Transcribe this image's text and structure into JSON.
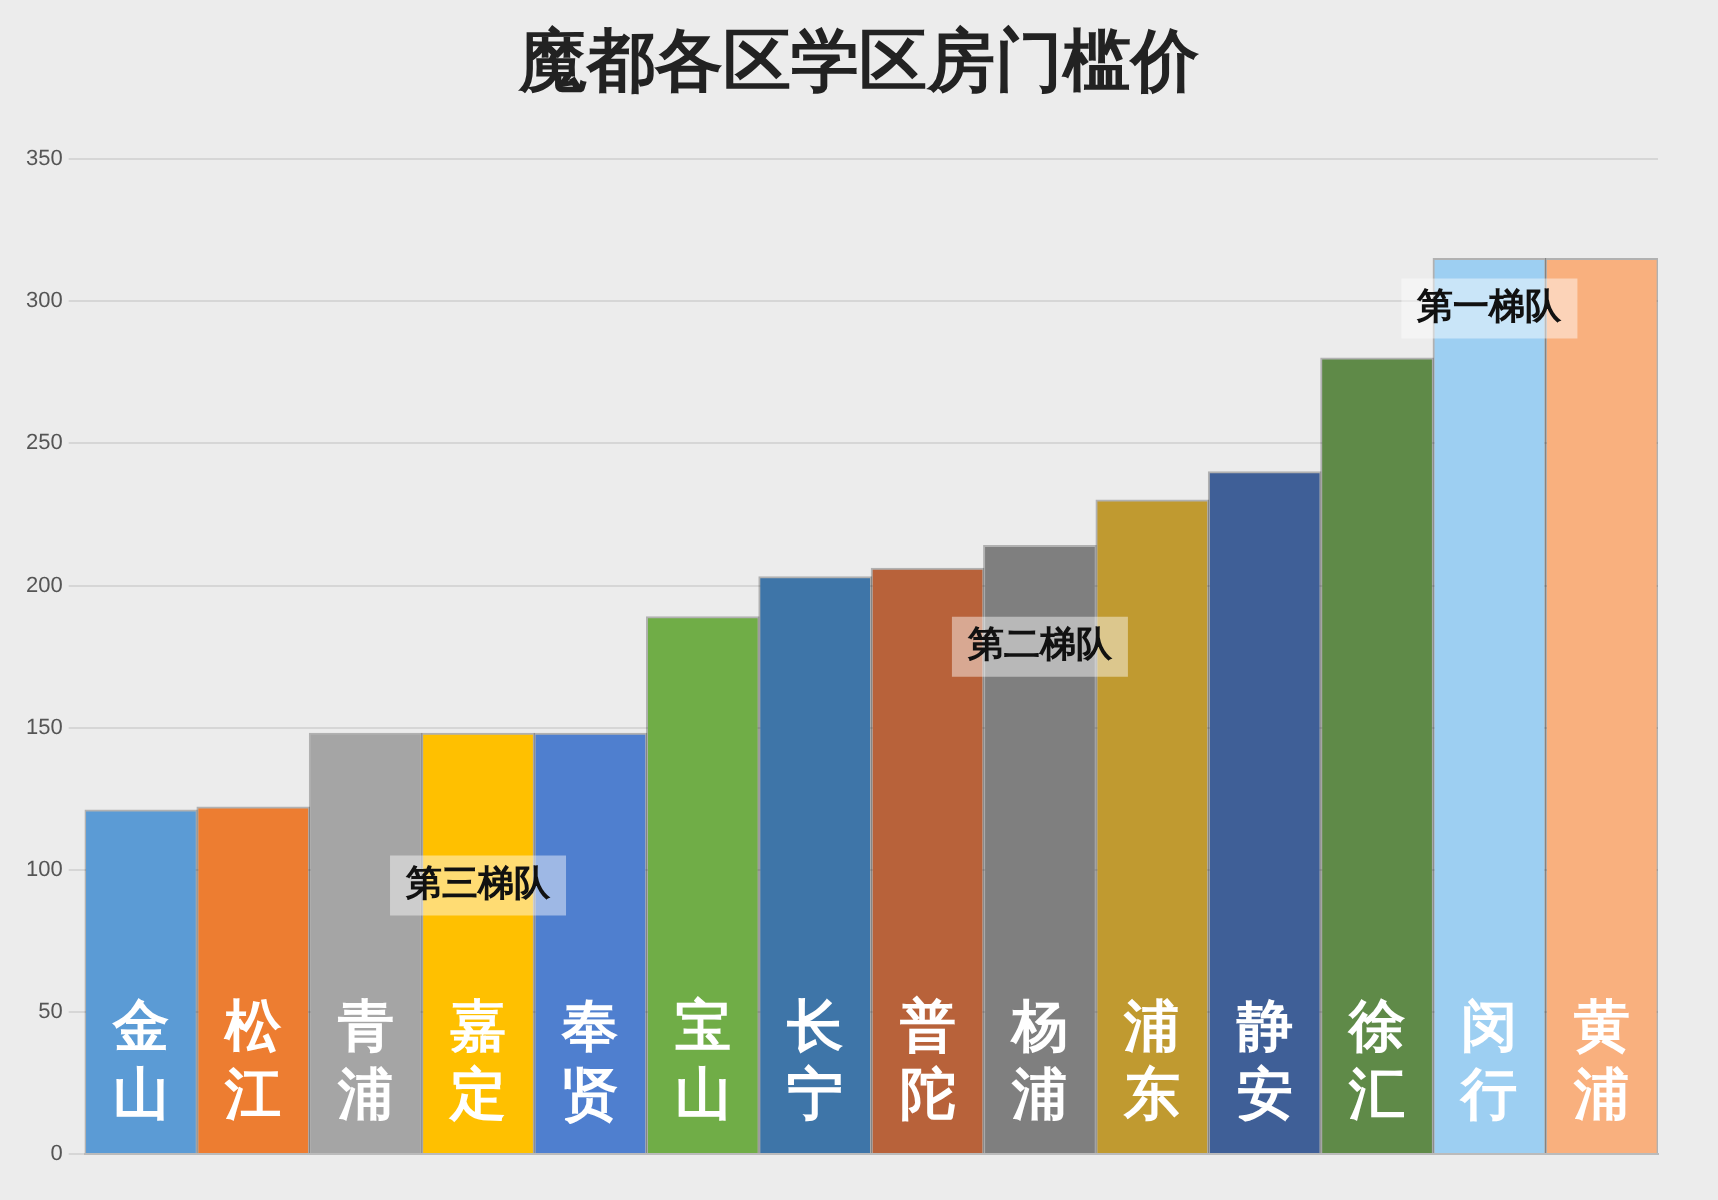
{
  "chart_data": {
    "type": "bar",
    "title": "魔都各区学区房门槛价",
    "categories": [
      "金山",
      "松江",
      "青浦",
      "嘉定",
      "奉贤",
      "宝山",
      "长宁",
      "普陀",
      "杨浦",
      "浦东",
      "静安",
      "徐汇",
      "闵行",
      "黄浦"
    ],
    "values": [
      121,
      122,
      148,
      148,
      148,
      189,
      203,
      206,
      214,
      230,
      240,
      280,
      315,
      315
    ],
    "colors": [
      "#5b9bd5",
      "#ed7d31",
      "#a5a5a5",
      "#ffc000",
      "#4f7fcf",
      "#70ad47",
      "#3e75a8",
      "#b8623a",
      "#7f7f7f",
      "#c09a30",
      "#3f5f97",
      "#5f8a48",
      "#9dcff2",
      "#f9b07e"
    ],
    "ylim": [
      0,
      350
    ],
    "yticks": [
      0,
      50,
      100,
      150,
      200,
      250,
      300,
      350
    ],
    "grid": "y",
    "legend": false,
    "annotations": [
      "第三梯队",
      "第二梯队",
      "第一梯队"
    ]
  }
}
